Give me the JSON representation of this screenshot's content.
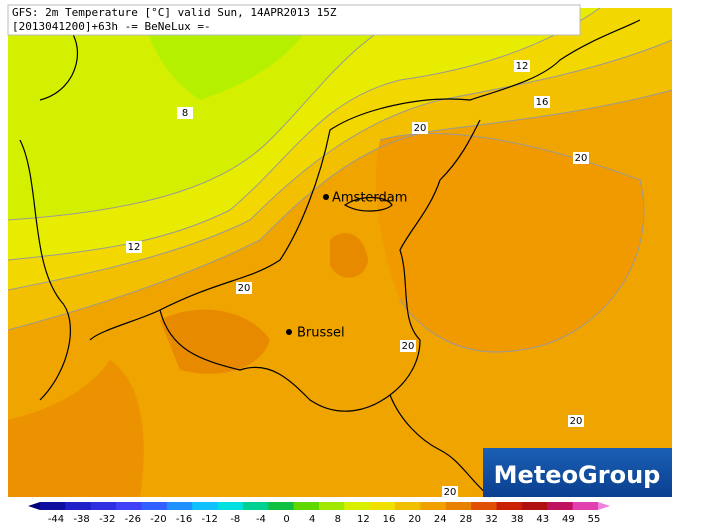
{
  "header": {
    "line1": "GFS: 2m Temperature [°C] valid Sun, 14APR2013 15Z",
    "line2": "[2013041200]+63h -= BeNeLux =-"
  },
  "cities": [
    {
      "label": "Amsterdam"
    },
    {
      "label": "Brussel"
    }
  ],
  "contour_labels": [
    "12",
    "16",
    "20",
    "20",
    "8",
    "12",
    "20",
    "20",
    "20",
    "20"
  ],
  "colorbar": {
    "labels": [
      "-44",
      "-38",
      "-32",
      "-26",
      "-20",
      "-16",
      "-12",
      "-8",
      "-4",
      "0",
      "4",
      "8",
      "12",
      "16",
      "20",
      "24",
      "28",
      "32",
      "38",
      "43",
      "49",
      "55"
    ]
  },
  "logo": "MeteoGroup"
}
